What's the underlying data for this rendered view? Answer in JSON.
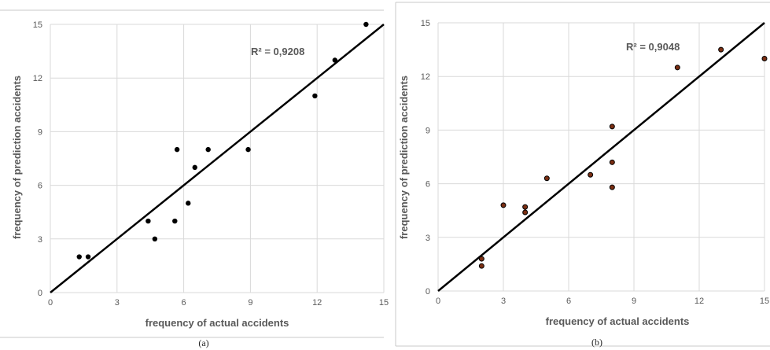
{
  "chart_data": [
    {
      "type": "scatter",
      "panel": "a",
      "caption": "(a)",
      "xlabel": "frequency of actual accidents",
      "ylabel": "frequency of prediction accidents",
      "xlim": [
        0,
        15
      ],
      "ylim": [
        0,
        15
      ],
      "xticks": [
        "0",
        "3",
        "6",
        "9",
        "12",
        "15"
      ],
      "yticks": [
        "0",
        "3",
        "6",
        "9",
        "12",
        "15"
      ],
      "grid": true,
      "annotation": "R² = 0,9208",
      "marker_color": "#000000",
      "line_color": "#000000",
      "points": [
        [
          1.3,
          2
        ],
        [
          1.7,
          2
        ],
        [
          4.4,
          4
        ],
        [
          4.7,
          3
        ],
        [
          5.6,
          4
        ],
        [
          5.7,
          8
        ],
        [
          6.2,
          5
        ],
        [
          6.5,
          7
        ],
        [
          7.1,
          8
        ],
        [
          8.9,
          8
        ],
        [
          11.9,
          11
        ],
        [
          12.8,
          13
        ],
        [
          14.2,
          15
        ]
      ],
      "fit_line": [
        [
          0,
          0
        ],
        [
          15,
          15
        ]
      ]
    },
    {
      "type": "scatter",
      "panel": "b",
      "caption": "(b)",
      "xlabel": "frequency of actual accidents",
      "ylabel": "frequency of prediction accidents",
      "xlim": [
        0,
        15
      ],
      "ylim": [
        0,
        15
      ],
      "xticks": [
        "0",
        "3",
        "6",
        "9",
        "12",
        "15"
      ],
      "yticks": [
        "0",
        "3",
        "6",
        "9",
        "12",
        "15"
      ],
      "grid": true,
      "annotation": "R² = 0,9048",
      "marker_color": "#7a2e12",
      "line_color": "#000000",
      "points": [
        [
          2,
          1.8
        ],
        [
          2,
          1.4
        ],
        [
          3,
          4.8
        ],
        [
          4,
          4.7
        ],
        [
          4,
          4.4
        ],
        [
          5,
          6.3
        ],
        [
          7,
          6.5
        ],
        [
          8,
          9.2
        ],
        [
          8,
          7.2
        ],
        [
          8,
          5.8
        ],
        [
          11,
          12.5
        ],
        [
          13,
          13.5
        ],
        [
          15,
          13.0
        ]
      ],
      "fit_line": [
        [
          0,
          0
        ],
        [
          15,
          15
        ]
      ]
    }
  ]
}
